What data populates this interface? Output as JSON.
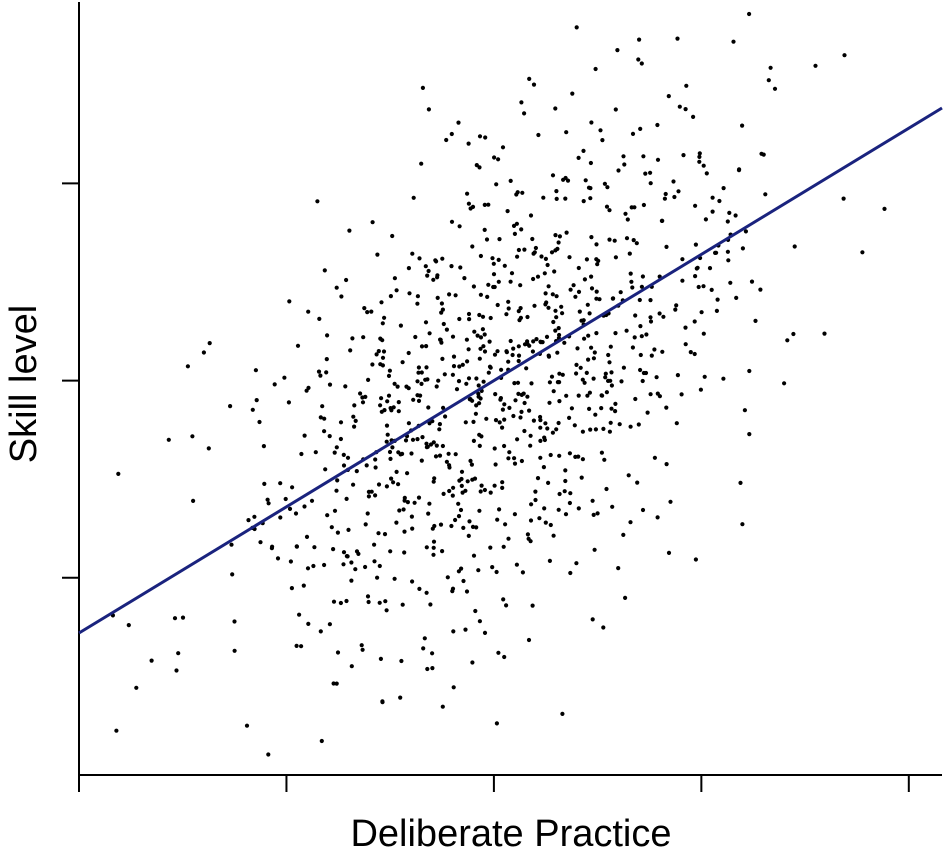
{
  "chart_data": {
    "type": "scatter",
    "xlabel": "Deliberate Practice",
    "ylabel": "Skill level",
    "xlim": [
      -2.0,
      2.16
    ],
    "ylim": [
      -2.0,
      1.92
    ],
    "xticks": [
      -2,
      -1,
      0,
      1,
      2
    ],
    "yticks": [
      -1,
      0,
      1
    ],
    "tick_labels_shown": false,
    "grid": false,
    "legend": "none",
    "point_color": "#000000",
    "fit_line": {
      "slope": 0.64,
      "intercept": 0.0,
      "color": "#1a237e"
    },
    "series": [
      {
        "n_points": 1000,
        "correlation": 0.55,
        "x_mean": 0.0,
        "x_sd": 0.62,
        "y_mean": 0.0,
        "y_sd": 0.75,
        "x": [
          -1.76,
          -1.65,
          -1.53,
          -1.45,
          -1.37,
          -1.25,
          -1.19,
          -1.07,
          -1.03,
          -0.95,
          -0.87,
          -0.79,
          -0.71,
          -0.63,
          -0.55,
          -0.47,
          -0.39,
          -0.31,
          -0.23,
          -0.15,
          -0.07,
          0.01,
          0.09,
          0.17,
          0.25,
          0.33,
          0.41,
          0.49,
          0.57,
          0.65,
          0.73,
          0.81,
          0.89,
          0.97,
          1.05,
          1.13,
          1.21,
          1.29,
          1.45,
          1.69
        ],
        "y": [
          -1.24,
          -1.42,
          -1.47,
          -0.61,
          0.19,
          -1.37,
          -1.75,
          -0.85,
          -0.52,
          -0.84,
          -0.94,
          -0.02,
          -0.6,
          0.22,
          -0.94,
          -0.72,
          -0.3,
          0.24,
          1.22,
          0.08,
          -0.66,
          -0.2,
          0.13,
          1.53,
          -0.72,
          -1.69,
          0.45,
          1.58,
          -0.64,
          -0.48,
          1.05,
          0.81,
          0.96,
          0.53,
          0.46,
          0.61,
          -0.15,
          1.15,
          0.68,
          1.65
        ]
      }
    ]
  }
}
